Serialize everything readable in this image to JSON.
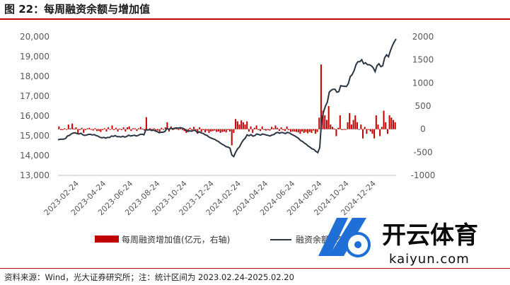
{
  "title": "图 22：每周融资余额与增加值",
  "source": "资料来源：Wind，光大证券研究所；注：统计区间为 2023.02.24-2025.02.20",
  "watermark": {
    "brand": "开云体育",
    "url": "kaiyun.com"
  },
  "chart_data": {
    "type": "bar+line",
    "x_ticks": [
      "2023-02-24",
      "2023-04-24",
      "2023-06-24",
      "2023-08-24",
      "2023-10-24",
      "2023-12-24",
      "2024-02-24",
      "2024-04-24",
      "2024-06-24",
      "2024-08-24",
      "2024-10-24",
      "2024-12-24"
    ],
    "y_left": {
      "min": 13000,
      "max": 20000,
      "ticks": [
        "13,000",
        "14,000",
        "15,000",
        "16,000",
        "17,000",
        "18,000",
        "19,000",
        "20,000"
      ]
    },
    "y_right": {
      "min": -1000,
      "max": 2000,
      "ticks": [
        "-1000",
        "-500",
        "0",
        "500",
        "1000",
        "1500",
        "2000"
      ]
    },
    "series": [
      {
        "name": "每周融资增加值(亿元，右轴)",
        "axis": "right",
        "kind": "bar",
        "color": "#c00000",
        "values": [
          60,
          -20,
          -20,
          20,
          0,
          100,
          20,
          120,
          10,
          40,
          -100,
          -20,
          30,
          -80,
          -20,
          20,
          30,
          0,
          -30,
          20,
          -40,
          -40,
          -60,
          -20,
          20,
          -50,
          40,
          -10,
          80,
          -20,
          30,
          -50,
          10,
          -20,
          40,
          -50,
          40,
          60,
          -40,
          20,
          20,
          -40,
          20,
          50,
          10,
          -30,
          260,
          -20,
          20,
          -40,
          20,
          -50,
          -30,
          -60,
          30,
          0,
          40,
          150,
          -50,
          60,
          -20,
          20,
          20,
          -20,
          30,
          -20,
          -40,
          -80,
          -50,
          30,
          -20,
          50,
          -20,
          -100,
          40,
          -60,
          -20,
          -70,
          -30,
          -80,
          -50,
          -40,
          -30,
          -60,
          -50,
          -80,
          -60,
          -50,
          -70,
          -20,
          -50,
          -350,
          -80,
          220,
          170,
          100,
          190,
          150,
          100,
          170,
          -50,
          60,
          -80,
          30,
          80,
          -20,
          -40,
          60,
          -20,
          -30,
          -20,
          -30,
          50,
          20,
          80,
          30,
          -40,
          40,
          -20,
          -40,
          60,
          -20,
          -60,
          -50,
          -50,
          -60,
          -70,
          -100,
          -50,
          -80,
          -60,
          -90,
          -60,
          -80,
          -30,
          -100,
          -60,
          250,
          1400,
          400,
          300,
          200,
          500,
          100,
          50,
          10,
          -150,
          30,
          300,
          -20,
          -10,
          -10,
          150,
          350,
          100,
          200,
          300,
          150,
          0,
          100,
          -200,
          50,
          -100,
          0,
          -50,
          -100,
          -200,
          300,
          100,
          -150,
          50,
          400,
          150,
          -100,
          300,
          250,
          200,
          150
        ]
      },
      {
        "name": "融资余额(亿元)",
        "axis": "left",
        "kind": "line",
        "color": "#2b3643",
        "values": [
          14800,
          14820,
          14830,
          14830,
          14870,
          14990,
          15020,
          15100,
          15140,
          15150,
          15110,
          15090,
          15130,
          15050,
          15020,
          15040,
          15070,
          15070,
          15040,
          15060,
          15010,
          14980,
          14920,
          14900,
          14920,
          14880,
          14920,
          14910,
          14990,
          14970,
          15010,
          14950,
          14960,
          14940,
          14980,
          14930,
          14970,
          15030,
          14990,
          15010,
          15030,
          14990,
          15020,
          15070,
          15080,
          15050,
          15310,
          15290,
          15310,
          15270,
          15290,
          15240,
          15210,
          15150,
          15180,
          15180,
          15220,
          15370,
          15320,
          15380,
          15360,
          15380,
          15400,
          15380,
          15410,
          15390,
          15350,
          15270,
          15220,
          15250,
          15230,
          15280,
          15260,
          15160,
          15200,
          15140,
          15120,
          15050,
          15020,
          14940,
          14890,
          14850,
          14820,
          14760,
          14710,
          14630,
          14570,
          14520,
          14450,
          14430,
          14380,
          14030,
          13950,
          14170,
          14340,
          14440,
          14630,
          14780,
          14880,
          15050,
          15000,
          15060,
          14980,
          15010,
          15090,
          15070,
          15030,
          15090,
          15070,
          15040,
          15020,
          14990,
          15040,
          15060,
          15140,
          15170,
          15130,
          15170,
          15150,
          15110,
          15170,
          15150,
          15090,
          15040,
          14990,
          14930,
          14860,
          14760,
          14710,
          14630,
          14570,
          14480,
          14420,
          14340,
          14310,
          14210,
          14150,
          14400,
          15800,
          16200,
          16500,
          16700,
          17200,
          17300,
          17350,
          17350,
          17200,
          17230,
          17530,
          17510,
          17500,
          17490,
          17640,
          17990,
          18090,
          18290,
          18590,
          18740,
          18740,
          18840,
          18640,
          18690,
          18590,
          18590,
          18540,
          18440,
          18240,
          18540,
          18640,
          18490,
          18540,
          18940,
          19090,
          18990,
          19290,
          19540,
          19740,
          19890
        ]
      }
    ],
    "legend": [
      "每周融资增加值(亿元，右轴)",
      "融资余额(亿元)"
    ],
    "legend_position": "bottom"
  }
}
